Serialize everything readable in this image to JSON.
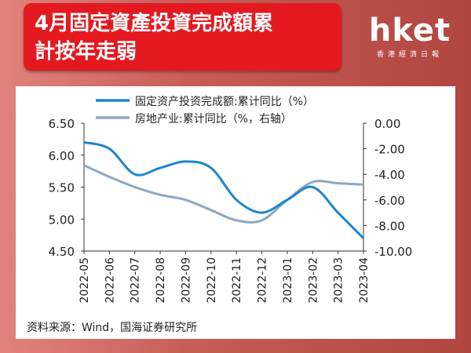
{
  "header": {
    "title_line1": "4月固定資產投資完成額累",
    "title_line2": "計按年走弱"
  },
  "logo": {
    "main": "hket",
    "sub": "香港經濟日報"
  },
  "source": "资料来源：Wind，国海证券研究所",
  "colors": {
    "fixed_asset": "#1a86cf",
    "real_estate": "#8fa7bf",
    "title_bg": "#e4191f"
  },
  "chart_data": {
    "type": "line",
    "categories": [
      "2022-05",
      "2022-06",
      "2022-07",
      "2022-08",
      "2022-09",
      "2022-10",
      "2022-11",
      "2022-12",
      "2023-01",
      "2023-02",
      "2023-03",
      "2023-04"
    ],
    "series": [
      {
        "name": "固定资产投资完成额:累计同比（%）",
        "axis": "left",
        "values": [
          6.2,
          6.1,
          5.7,
          5.8,
          5.9,
          5.8,
          5.3,
          5.1,
          5.3,
          5.5,
          5.1,
          4.7
        ]
      },
      {
        "name": "房地产业:累计同比（%，右轴）",
        "axis": "right",
        "values": [
          -3.3,
          -4.2,
          -5.0,
          -5.6,
          -6.0,
          -6.8,
          -7.6,
          -7.6,
          -6.0,
          -4.6,
          -4.7,
          -4.8
        ]
      }
    ],
    "y_left": {
      "ticks": [
        "6.50",
        "6.00",
        "5.50",
        "5.00",
        "4.50"
      ],
      "range": [
        4.5,
        6.5
      ]
    },
    "y_right": {
      "ticks": [
        "0.00",
        "-2.00",
        "-4.00",
        "-6.00",
        "-8.00",
        "-10.00"
      ],
      "range": [
        -10,
        0
      ]
    },
    "legend_position": "top-center",
    "grid": false
  }
}
